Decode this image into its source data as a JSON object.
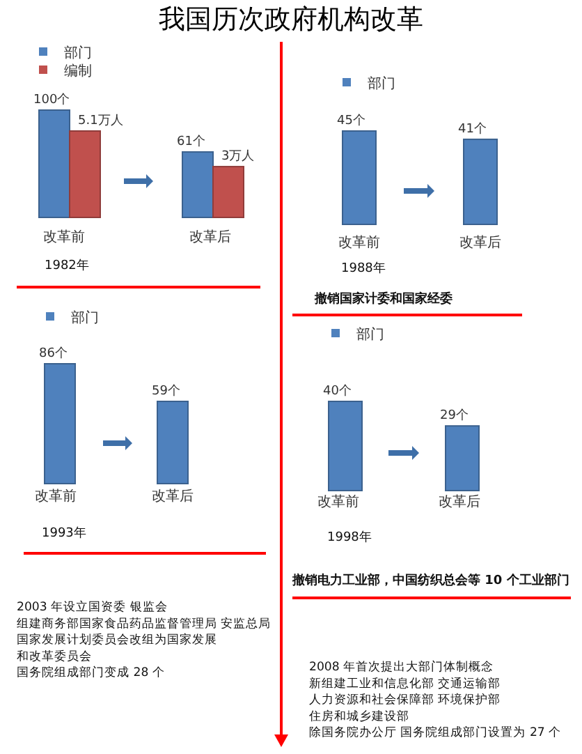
{
  "chart_data": [
    {
      "type": "bar",
      "title": "我国历次政府机构改革",
      "categories": [
        "改革前",
        "改革后"
      ],
      "legend": "top left",
      "annotations": [
        "1982年"
      ],
      "series": [
        {
          "name": "部门",
          "color": "#4f81bd",
          "values": [
            100,
            61
          ],
          "value_labels": [
            "100个",
            "61个"
          ]
        },
        {
          "name": "编制",
          "color": "#c0504d",
          "values": [
            5.1,
            3
          ],
          "value_labels": [
            "5.1万人",
            "3万人"
          ],
          "axis": "y2"
        }
      ]
    },
    {
      "type": "bar",
      "categories": [
        "改革前",
        "改革后"
      ],
      "legend": "top left",
      "annotations": [
        "1988年",
        "撤销国家计委和国家经委"
      ],
      "series": [
        {
          "name": "部门",
          "color": "#4f81bd",
          "values": [
            45,
            41
          ],
          "value_labels": [
            "45个",
            "41个"
          ]
        }
      ]
    },
    {
      "type": "bar",
      "categories": [
        "改革前",
        "改革后"
      ],
      "legend": "top left",
      "annotations": [
        "1993年"
      ],
      "series": [
        {
          "name": "部门",
          "color": "#4f81bd",
          "values": [
            86,
            59
          ],
          "value_labels": [
            "86个",
            "59个"
          ]
        }
      ]
    },
    {
      "type": "bar",
      "categories": [
        "改革前",
        "改革后"
      ],
      "legend": "top left",
      "annotations": [
        "1998年",
        "撤销电力工业部，中国纺织总会等 10 个工业部门"
      ],
      "series": [
        {
          "name": "部门",
          "color": "#4f81bd",
          "values": [
            40,
            29
          ],
          "value_labels": [
            "40个",
            "29个"
          ]
        }
      ]
    },
    {
      "type": "other",
      "annotations": [
        "2003 年设立国资委 银监会",
        "组建商务部国家食品药品监督管理局 安监总局",
        "国家发展计划委员会改组为国家发展",
        "和改革委员会",
        "国务院组成部门变成 28 个"
      ]
    },
    {
      "type": "other",
      "annotations": [
        "2008 年首次提出大部门体制概念",
        "新组建工业和信息化部 交通运输部",
        "人力资源和社会保障部  环境保护部",
        "住房和城乡建设部",
        "除国务院办公厅 国务院组成部门设置为 27 个"
      ]
    }
  ]
}
